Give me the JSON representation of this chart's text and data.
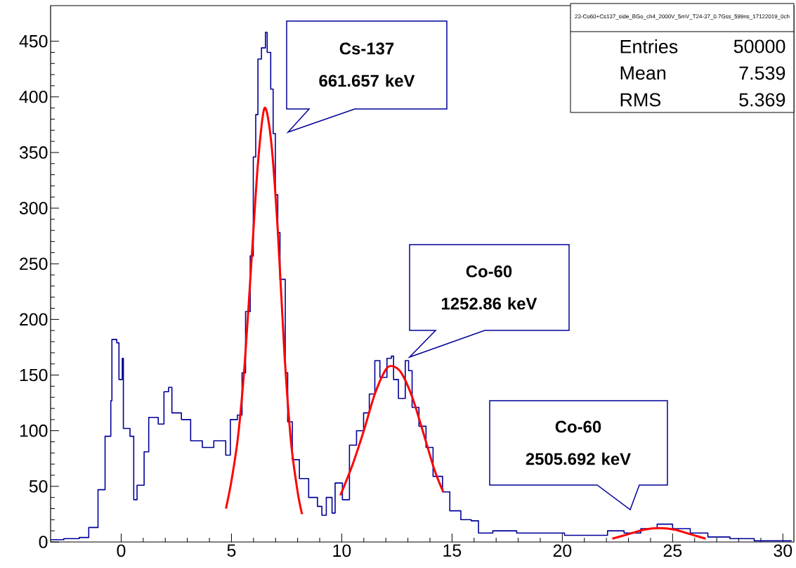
{
  "chart_data": {
    "type": "step",
    "xlim": [
      -3.2,
      30.5
    ],
    "ylim": [
      0,
      482
    ],
    "xticks": [
      0,
      5,
      10,
      15,
      20,
      25,
      30
    ],
    "yticks": [
      0,
      50,
      100,
      150,
      200,
      250,
      300,
      350,
      400,
      450
    ],
    "grid": false,
    "marker": "none",
    "series": [
      {
        "color": "#000099",
        "x": [
          -3.2,
          -2.6,
          -1.9,
          -1.47,
          -1.05,
          -0.73,
          -0.47,
          -0.42,
          -0.2,
          -0.1,
          0.05,
          0.1,
          0.4,
          0.57,
          0.72,
          1.04,
          1.25,
          1.68,
          1.94,
          2.15,
          2.3,
          2.73,
          2.94,
          3.15,
          3.68,
          4.2,
          4.74,
          4.95,
          5.27,
          5.48,
          5.64,
          5.85,
          5.99,
          6.1,
          6.2,
          6.36,
          6.54,
          6.62,
          6.78,
          6.89,
          6.99,
          7.1,
          7.2,
          7.44,
          7.55,
          7.76,
          8.08,
          8.5,
          8.9,
          9.1,
          9.3,
          9.56,
          9.7,
          10.03,
          10.35,
          10.67,
          10.99,
          11.25,
          11.5,
          11.73,
          12.05,
          12.25,
          12.35,
          12.57,
          12.88,
          13.03,
          13.19,
          13.5,
          13.82,
          14.14,
          14.57,
          14.9,
          15.4,
          15.87,
          16.2,
          16.85,
          17.93,
          19.0,
          20.1,
          21.2,
          22.05,
          22.8,
          23.56,
          24.3,
          25.0,
          25.8,
          26.6,
          27.6,
          28.7,
          29.8,
          30.4
        ],
        "values": [
          2,
          3,
          4,
          13,
          47,
          95,
          127,
          182,
          179,
          146,
          165,
          102,
          95,
          38,
          51,
          81,
          112,
          106,
          135,
          139,
          116,
          110,
          110,
          91,
          85,
          91,
          78,
          110,
          114,
          152,
          207,
          257,
          346,
          384,
          434,
          444,
          458,
          440,
          407,
          367,
          312,
          278,
          236,
          152,
          108,
          74,
          57,
          40,
          32,
          24,
          40,
          26,
          53,
          38,
          87,
          100,
          116,
          133,
          163,
          148,
          165,
          167,
          146,
          129,
          163,
          154,
          121,
          104,
          85,
          59,
          45,
          28,
          20,
          19,
          8,
          10,
          8,
          8,
          6,
          6,
          10,
          8,
          12,
          16,
          12,
          8,
          4.5,
          3,
          1,
          1,
          1
        ]
      },
      {
        "type": "line",
        "color": "#ff0000",
        "x": [
          4.75,
          5.0,
          5.3,
          5.6,
          5.9,
          6.2,
          6.5,
          6.8,
          7.1,
          7.4,
          7.7,
          8.0,
          8.2
        ],
        "values": [
          30,
          55,
          95,
          160,
          250,
          340,
          390,
          360,
          280,
          170,
          90,
          45,
          25
        ]
      },
      {
        "type": "line",
        "color": "#ff0000",
        "x": [
          9.94,
          10.5,
          11.0,
          11.5,
          12.0,
          12.3,
          12.7,
          13.2,
          13.7,
          14.2,
          14.6
        ],
        "values": [
          42,
          70,
          100,
          133,
          155,
          158,
          152,
          130,
          98,
          65,
          45
        ]
      },
      {
        "type": "line",
        "color": "#ff0000",
        "x": [
          22.27,
          23.0,
          23.7,
          24.4,
          25.1,
          25.8,
          26.5
        ],
        "values": [
          3,
          7,
          11,
          12.4,
          11,
          7,
          3
        ]
      }
    ],
    "annotations": [
      "**Cs-137 661.657 keV**",
      "**Co-60 1252.86 keV**",
      "**Co-60 2505.692 keV**",
      "23-Co60+Cs137_side_BGo_ch4_2000V_5mV_T24-37_0.7Gss_599ns_17122019_0ch",
      "Entries",
      "50000",
      "Mean",
      "7.539",
      "RMS",
      "5.369"
    ]
  }
}
